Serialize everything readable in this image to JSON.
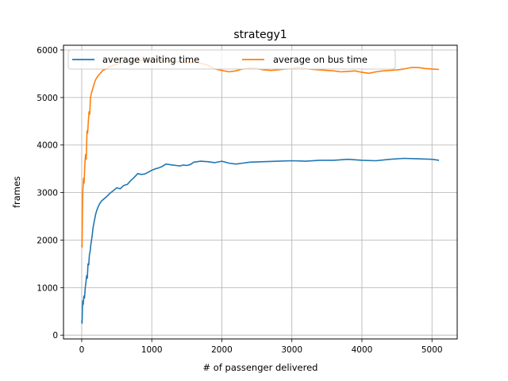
{
  "chart_data": {
    "type": "line",
    "title": "strategy1",
    "xlabel": "# of passenger delivered",
    "ylabel": "frames",
    "xlim": [
      -260,
      5360
    ],
    "ylim": [
      -80,
      6100
    ],
    "xticks": [
      0,
      1000,
      2000,
      3000,
      4000,
      5000
    ],
    "yticks": [
      0,
      1000,
      2000,
      3000,
      4000,
      5000,
      6000
    ],
    "grid": true,
    "legend": {
      "placement": "top-left",
      "columns": 2
    },
    "series": [
      {
        "name": "average waiting time",
        "color": "#1f77b4",
        "points": [
          [
            0,
            300
          ],
          [
            5,
            250
          ],
          [
            10,
            550
          ],
          [
            15,
            720
          ],
          [
            22,
            650
          ],
          [
            30,
            820
          ],
          [
            40,
            780
          ],
          [
            50,
            1000
          ],
          [
            60,
            1100
          ],
          [
            70,
            1250
          ],
          [
            80,
            1200
          ],
          [
            90,
            1500
          ],
          [
            100,
            1480
          ],
          [
            110,
            1700
          ],
          [
            120,
            1750
          ],
          [
            130,
            1900
          ],
          [
            140,
            2000
          ],
          [
            150,
            2100
          ],
          [
            160,
            2250
          ],
          [
            180,
            2400
          ],
          [
            200,
            2550
          ],
          [
            220,
            2650
          ],
          [
            250,
            2750
          ],
          [
            280,
            2820
          ],
          [
            320,
            2870
          ],
          [
            360,
            2920
          ],
          [
            400,
            2980
          ],
          [
            450,
            3040
          ],
          [
            500,
            3100
          ],
          [
            550,
            3080
          ],
          [
            600,
            3150
          ],
          [
            650,
            3170
          ],
          [
            700,
            3250
          ],
          [
            750,
            3320
          ],
          [
            800,
            3400
          ],
          [
            850,
            3380
          ],
          [
            900,
            3390
          ],
          [
            950,
            3430
          ],
          [
            1000,
            3470
          ],
          [
            1050,
            3500
          ],
          [
            1100,
            3520
          ],
          [
            1150,
            3550
          ],
          [
            1200,
            3600
          ],
          [
            1250,
            3590
          ],
          [
            1300,
            3580
          ],
          [
            1350,
            3570
          ],
          [
            1400,
            3560
          ],
          [
            1450,
            3580
          ],
          [
            1500,
            3570
          ],
          [
            1550,
            3590
          ],
          [
            1600,
            3640
          ],
          [
            1700,
            3660
          ],
          [
            1800,
            3650
          ],
          [
            1900,
            3630
          ],
          [
            2000,
            3660
          ],
          [
            2100,
            3620
          ],
          [
            2200,
            3600
          ],
          [
            2300,
            3620
          ],
          [
            2400,
            3640
          ],
          [
            2600,
            3650
          ],
          [
            2800,
            3660
          ],
          [
            3000,
            3670
          ],
          [
            3200,
            3660
          ],
          [
            3400,
            3680
          ],
          [
            3600,
            3680
          ],
          [
            3800,
            3700
          ],
          [
            4000,
            3680
          ],
          [
            4200,
            3670
          ],
          [
            4400,
            3700
          ],
          [
            4600,
            3720
          ],
          [
            4800,
            3710
          ],
          [
            5000,
            3700
          ],
          [
            5100,
            3680
          ]
        ]
      },
      {
        "name": "average on bus time",
        "color": "#ff7f0e",
        "points": [
          [
            0,
            1900
          ],
          [
            5,
            1850
          ],
          [
            10,
            2500
          ],
          [
            15,
            3000
          ],
          [
            25,
            3300
          ],
          [
            35,
            3200
          ],
          [
            45,
            3600
          ],
          [
            55,
            3800
          ],
          [
            65,
            3700
          ],
          [
            75,
            4300
          ],
          [
            85,
            4250
          ],
          [
            95,
            4500
          ],
          [
            105,
            4700
          ],
          [
            115,
            4650
          ],
          [
            125,
            5000
          ],
          [
            140,
            5100
          ],
          [
            160,
            5200
          ],
          [
            180,
            5300
          ],
          [
            200,
            5380
          ],
          [
            230,
            5450
          ],
          [
            260,
            5500
          ],
          [
            300,
            5570
          ],
          [
            350,
            5600
          ],
          [
            400,
            5650
          ],
          [
            450,
            5680
          ],
          [
            500,
            5700
          ],
          [
            550,
            5720
          ],
          [
            600,
            5740
          ],
          [
            700,
            5760
          ],
          [
            800,
            5780
          ],
          [
            900,
            5790
          ],
          [
            1000,
            5800
          ],
          [
            1100,
            5790
          ],
          [
            1200,
            5780
          ],
          [
            1300,
            5770
          ],
          [
            1400,
            5750
          ],
          [
            1500,
            5730
          ],
          [
            1600,
            5740
          ],
          [
            1700,
            5720
          ],
          [
            1800,
            5680
          ],
          [
            1900,
            5600
          ],
          [
            2000,
            5570
          ],
          [
            2100,
            5540
          ],
          [
            2200,
            5560
          ],
          [
            2300,
            5600
          ],
          [
            2400,
            5620
          ],
          [
            2500,
            5610
          ],
          [
            2600,
            5580
          ],
          [
            2700,
            5570
          ],
          [
            2800,
            5580
          ],
          [
            2900,
            5600
          ],
          [
            3000,
            5610
          ],
          [
            3100,
            5630
          ],
          [
            3200,
            5610
          ],
          [
            3300,
            5590
          ],
          [
            3400,
            5580
          ],
          [
            3500,
            5570
          ],
          [
            3600,
            5560
          ],
          [
            3700,
            5540
          ],
          [
            3800,
            5550
          ],
          [
            3900,
            5560
          ],
          [
            4000,
            5530
          ],
          [
            4100,
            5510
          ],
          [
            4200,
            5540
          ],
          [
            4300,
            5560
          ],
          [
            4400,
            5570
          ],
          [
            4500,
            5580
          ],
          [
            4600,
            5600
          ],
          [
            4700,
            5630
          ],
          [
            4800,
            5630
          ],
          [
            4900,
            5610
          ],
          [
            5000,
            5600
          ],
          [
            5100,
            5590
          ]
        ]
      }
    ]
  }
}
